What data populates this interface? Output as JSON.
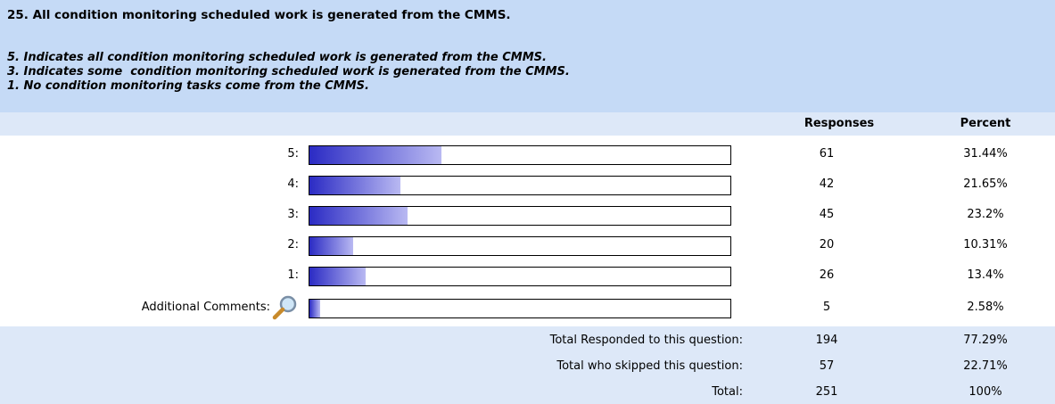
{
  "question": {
    "title": "25. All condition monitoring scheduled work is generated from the CMMS.",
    "description": [
      "5. Indicates all condition monitoring scheduled work is generated from the CMMS.",
      "3. Indicates some  condition monitoring scheduled work is generated from the CMMS.",
      "1. No condition monitoring tasks come from the CMMS."
    ]
  },
  "table": {
    "headers": [
      "Responses",
      "Percent"
    ],
    "xlim": [
      0,
      100
    ],
    "rows": [
      {
        "label": "5:",
        "responses": 61,
        "percent": {
          "value": 31.44,
          "label": "31.44%"
        }
      },
      {
        "label": "4:",
        "responses": 42,
        "percent": {
          "value": 21.65,
          "label": "21.65%"
        }
      },
      {
        "label": "3:",
        "responses": 45,
        "percent": {
          "value": 23.2,
          "label": "23.2%"
        }
      },
      {
        "label": "2:",
        "responses": 20,
        "percent": {
          "value": 10.31,
          "label": "10.31%"
        }
      },
      {
        "label": "1:",
        "responses": 26,
        "percent": {
          "value": 13.4,
          "label": "13.4%"
        }
      },
      {
        "label": "Additional Comments:",
        "responses": 5,
        "percent": {
          "value": 2.58,
          "label": "2.58%"
        }
      }
    ],
    "totals": [
      {
        "label": "Total Responded to this question:",
        "responses": 194,
        "percent": "77.29%"
      },
      {
        "label": "Total who skipped this question:",
        "responses": 57,
        "percent": "22.71%"
      },
      {
        "label": "Total:",
        "responses": 251,
        "percent": "100%"
      }
    ]
  }
}
